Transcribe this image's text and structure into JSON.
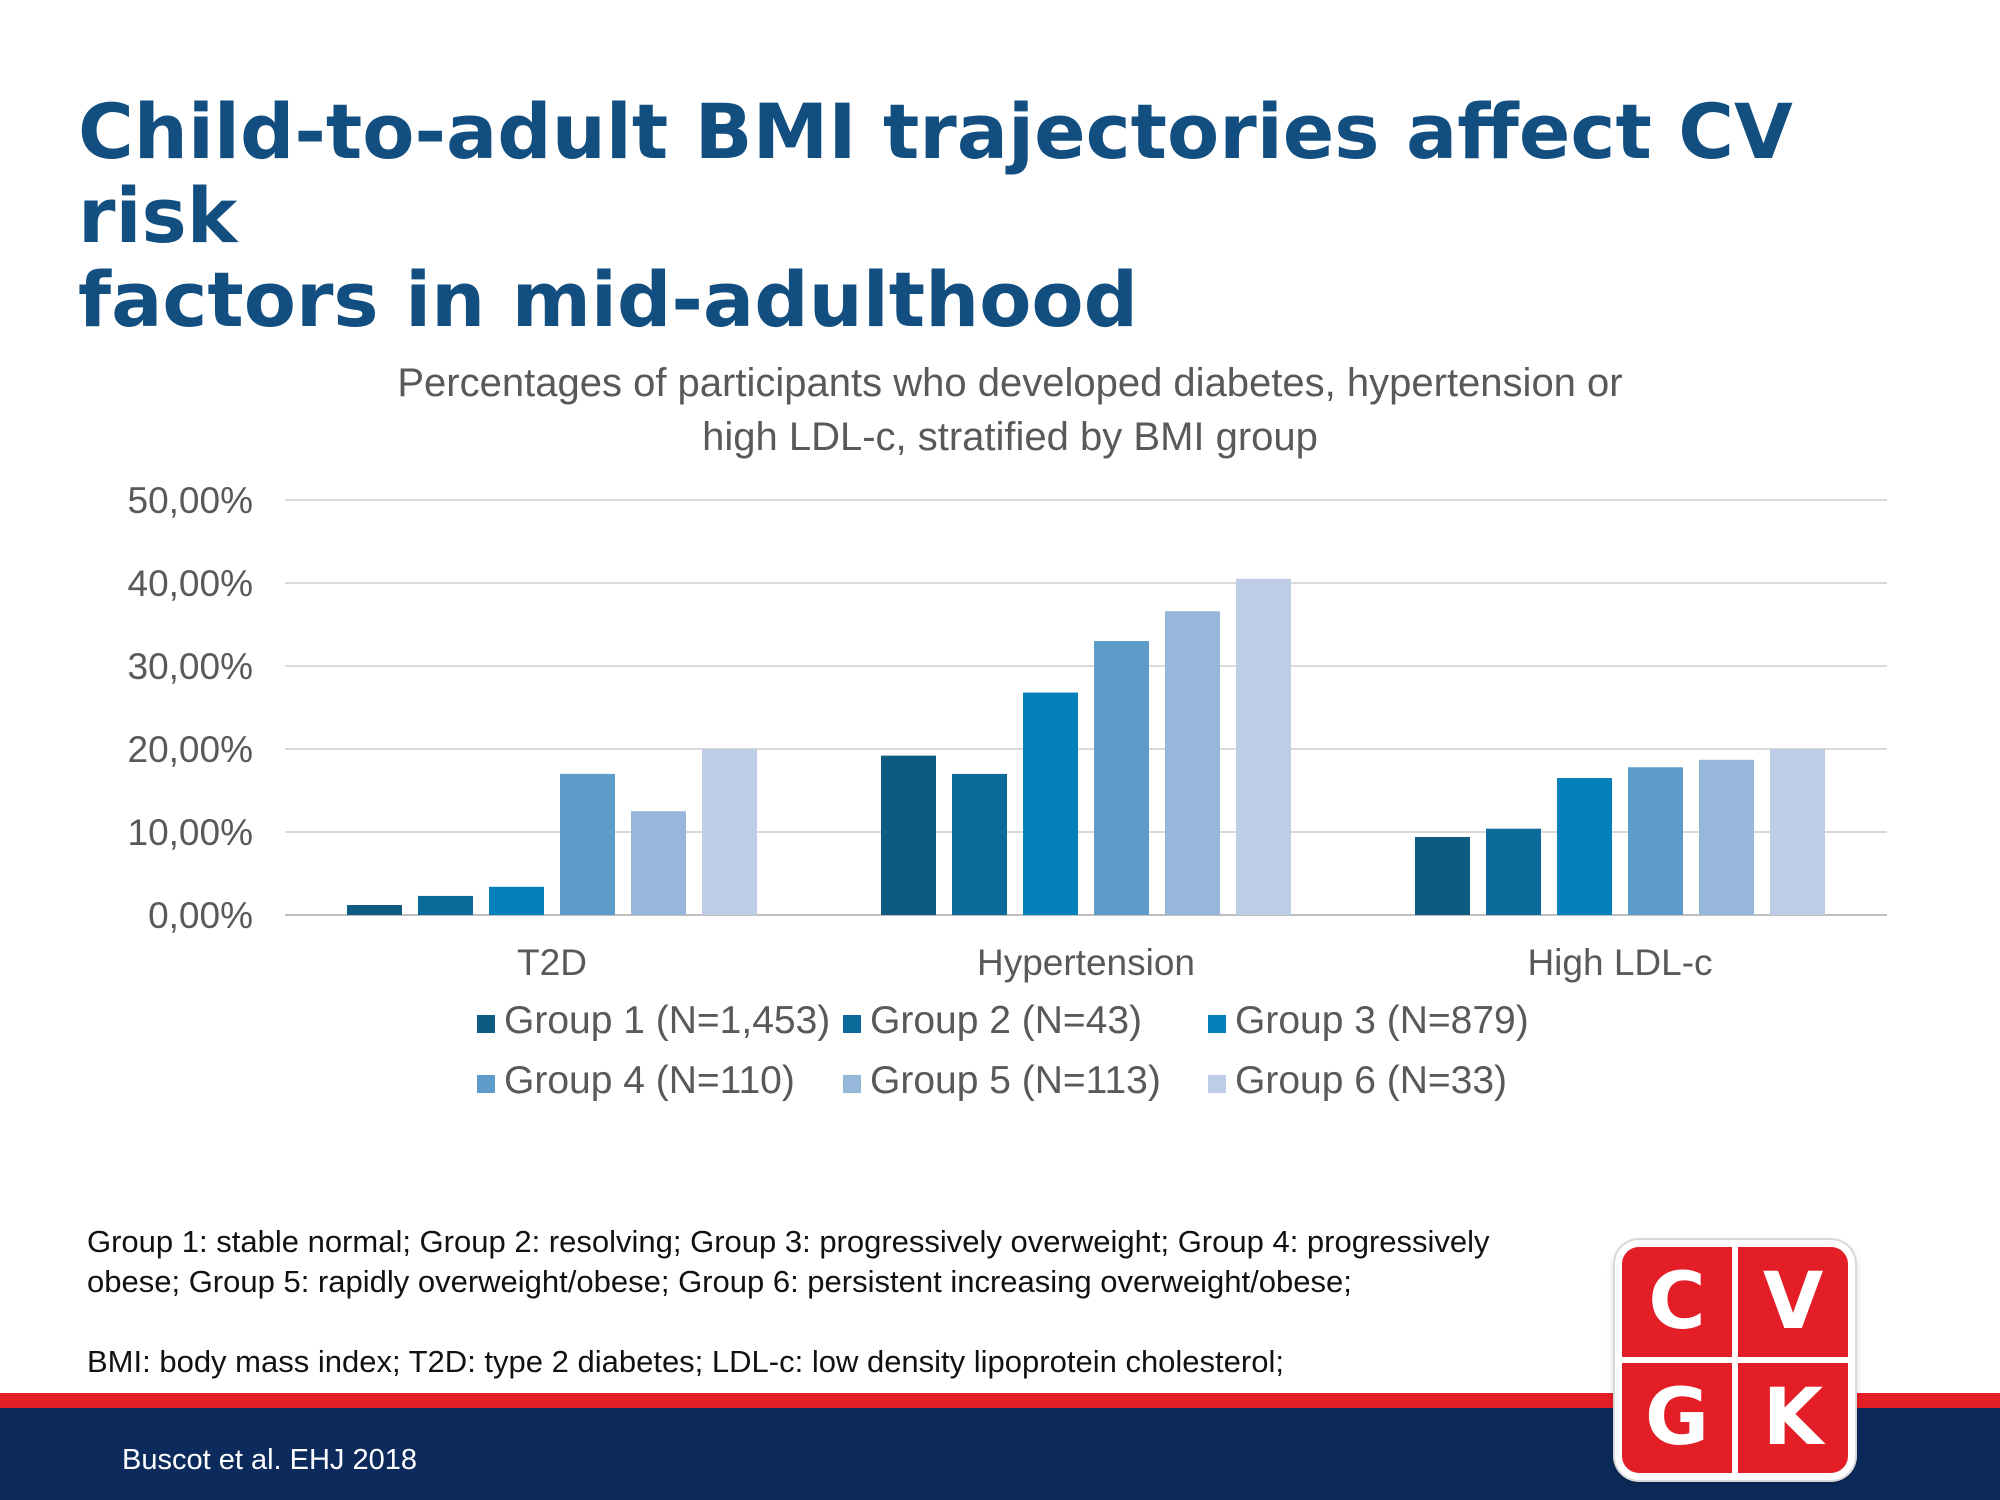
{
  "slide": {
    "title_line1": "Child-to-adult BMI trajectories affect CV risk",
    "title_line2": "factors in mid-adulthood"
  },
  "chart_data": {
    "type": "bar",
    "title_line1": "Percentages  of participants  who developed  diabetes,  hypertension  or",
    "title_line2": "high  LDL-c,  stratified by BMI group",
    "categories": [
      "T2D",
      "Hypertension",
      "High LDL-c"
    ],
    "ylim": [
      0,
      0.5
    ],
    "yticks": [
      {
        "value": 0.0,
        "label": "0,00%"
      },
      {
        "value": 0.1,
        "label": "10,00%"
      },
      {
        "value": 0.2,
        "label": "20,00%"
      },
      {
        "value": 0.3,
        "label": "30,00%"
      },
      {
        "value": 0.4,
        "label": "40,00%"
      },
      {
        "value": 0.5,
        "label": "50,00%"
      }
    ],
    "grid": true,
    "legend_position": "bottom",
    "series": [
      {
        "name": "Group 1 (N=1,453)",
        "color": "#0e5a80",
        "values": [
          0.012,
          0.192,
          0.094
        ]
      },
      {
        "name": "Group 2 (N=43)",
        "color": "#0b6b9b",
        "values": [
          0.023,
          0.17,
          0.104
        ]
      },
      {
        "name": "Group 3 (N=879)",
        "color": "#0580bb",
        "values": [
          0.034,
          0.268,
          0.165
        ]
      },
      {
        "name": "Group 4 (N=110)",
        "color": "#5d9bcb",
        "values": [
          0.17,
          0.33,
          0.178
        ]
      },
      {
        "name": "Group 5 (N=113)",
        "color": "#96b6da",
        "values": [
          0.125,
          0.366,
          0.187
        ]
      },
      {
        "name": "Group 6 (N=33)",
        "color": "#bccde5",
        "values": [
          0.2,
          0.405,
          0.2
        ]
      }
    ]
  },
  "notes": {
    "line1": "Group  1: stable normal;  Group  2: resolving;  Group  3: progressively  overweight;  Group  4: progressively",
    "line2": "obese; Group  5: rapidly overweight/obese;  Group  6: persistent increasing overweight/obese;",
    "line3": "BMI: body mass index;  T2D: type  2 diabetes; LDL-c: low density lipoprotein cholesterol;"
  },
  "footer": {
    "citation": "Buscot et al. EHJ 2018"
  },
  "logo": {
    "letters": [
      "C",
      "V",
      "G",
      "K"
    ],
    "color": "#e41e26"
  }
}
